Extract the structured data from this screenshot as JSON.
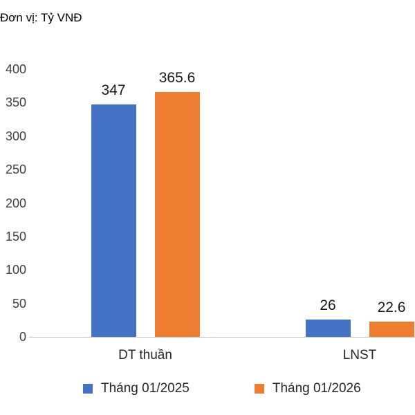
{
  "unit_label": "Đơn vị: Tỷ VNĐ",
  "chart_data": {
    "type": "bar",
    "title": "Đơn vị: Tỷ VNĐ",
    "categories": [
      "DT thuần",
      "LNST"
    ],
    "series": [
      {
        "name": "Tháng 01/2025",
        "color": "#4472C4",
        "values": [
          347,
          26
        ]
      },
      {
        "name": "Tháng 01/2026",
        "color": "#ED7D31",
        "values": [
          365.6,
          22.6
        ]
      }
    ],
    "data_labels": [
      [
        "347",
        "26"
      ],
      [
        "365.6",
        "22.6"
      ]
    ],
    "y_ticks": [
      0,
      50,
      100,
      150,
      200,
      250,
      300,
      350,
      400
    ],
    "ylim": [
      0,
      400
    ],
    "grid": false,
    "legend_position": "bottom",
    "legend": [
      "Tháng 01/2025",
      "Tháng 01/2026"
    ]
  }
}
